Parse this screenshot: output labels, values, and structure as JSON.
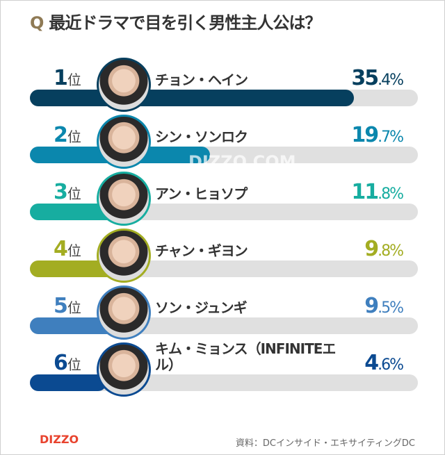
{
  "title": {
    "q": "Q",
    "text": "最近ドラマで目を引く男性主人公は？"
  },
  "rank_suffix": "位",
  "chart_data": {
    "type": "bar",
    "title": "最近ドラマで目を引く男性主人公は？",
    "categories": [
      "チョン・ヘイン",
      "シン・ソンロク",
      "アン・ヒョソプ",
      "チャン・ギヨン",
      "ソン・ジュンギ",
      "キム・ミョンス（INFINITEエル）"
    ],
    "ranks": [
      "1",
      "2",
      "3",
      "4",
      "5",
      "6"
    ],
    "values": [
      35.4,
      19.7,
      11.8,
      9.8,
      9.5,
      4.6
    ],
    "labels": [
      [
        "35",
        ".4%"
      ],
      [
        "19",
        ".7%"
      ],
      [
        "11",
        ".8%"
      ],
      [
        "9",
        ".8%"
      ],
      [
        "9",
        ".5%"
      ],
      [
        "4",
        ".6%"
      ]
    ],
    "colors": [
      "#063f5e",
      "#0b87ad",
      "#17ada0",
      "#a3ad22",
      "#3f7fbe",
      "#0b4a91"
    ],
    "unit": "%"
  },
  "watermark": "DIZZO.COM",
  "logo": "DIZZO",
  "source": "資料：DCインサイド・エキサイティングDC"
}
